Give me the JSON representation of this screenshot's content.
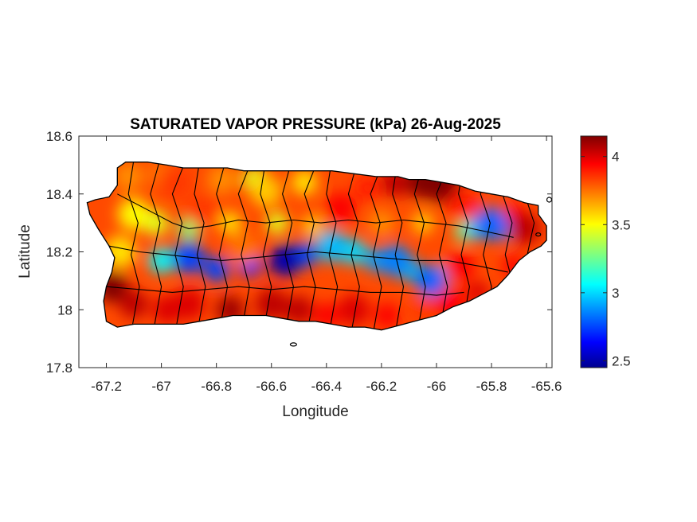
{
  "title": "SATURATED VAPOR PRESSURE (kPa) 26-Aug-2025",
  "axes": {
    "xlabel": "Longitude",
    "ylabel": "Latitude",
    "xlim": [
      -67.3,
      -65.58
    ],
    "ylim": [
      17.8,
      18.6
    ],
    "xticks": [
      -67.2,
      -67,
      -66.8,
      -66.6,
      -66.4,
      -66.2,
      -66,
      -65.8,
      -65.6
    ],
    "yticks": [
      17.8,
      18,
      18.2,
      18.4,
      18.6
    ],
    "xtick_labels": [
      "-67.2",
      "-67",
      "-66.8",
      "-66.6",
      "-66.4",
      "-66.2",
      "-66",
      "-65.8",
      "-65.6"
    ],
    "ytick_labels": [
      "17.8",
      "18",
      "18.2",
      "18.4",
      "18.6"
    ],
    "box": true,
    "grid": false
  },
  "colorbar": {
    "colormap": "jet",
    "range": [
      2.45,
      4.15
    ],
    "ticks": [
      2.5,
      3,
      3.5,
      4
    ],
    "tick_labels": [
      "2.5",
      "3",
      "3.5",
      "4"
    ],
    "placement": "right"
  },
  "colors": {
    "jet_stops": [
      "#00008f",
      "#0000ff",
      "#00ffff",
      "#ffff00",
      "#ff0000",
      "#800000"
    ],
    "boundary": "#000000"
  },
  "chart_data": {
    "type": "heatmap",
    "variable": "SATURATED VAPOR PRESSURE (kPa)",
    "date": "26-Aug-2025",
    "field_samples_kPa": [
      {
        "lon": -67.18,
        "lat": 18.08,
        "value": 4.15
      },
      {
        "lon": -67.1,
        "lat": 18.33,
        "value": 3.5
      },
      {
        "lon": -67.15,
        "lat": 18.2,
        "value": 3.55
      },
      {
        "lon": -66.95,
        "lat": 18.44,
        "value": 3.85
      },
      {
        "lon": -66.85,
        "lat": 18.34,
        "value": 3.85
      },
      {
        "lon": -66.62,
        "lat": 18.41,
        "value": 3.6
      },
      {
        "lon": -66.35,
        "lat": 18.35,
        "value": 3.95
      },
      {
        "lon": -66.05,
        "lat": 18.44,
        "value": 4.15
      },
      {
        "lon": -65.9,
        "lat": 18.36,
        "value": 3.9
      },
      {
        "lon": -65.8,
        "lat": 18.3,
        "value": 2.8
      },
      {
        "lon": -65.68,
        "lat": 18.28,
        "value": 4.05
      },
      {
        "lon": -66.9,
        "lat": 18.18,
        "value": 2.75
      },
      {
        "lon": -66.55,
        "lat": 18.17,
        "value": 2.5
      },
      {
        "lon": -66.7,
        "lat": 18.21,
        "value": 3.75
      },
      {
        "lon": -66.38,
        "lat": 18.22,
        "value": 2.95
      },
      {
        "lon": -66.15,
        "lat": 18.17,
        "value": 2.85
      },
      {
        "lon": -66.02,
        "lat": 18.1,
        "value": 2.8
      },
      {
        "lon": -65.92,
        "lat": 18.15,
        "value": 3.95
      },
      {
        "lon": -66.9,
        "lat": 18.02,
        "value": 4.0
      },
      {
        "lon": -66.6,
        "lat": 18.02,
        "value": 4.05
      },
      {
        "lon": -66.3,
        "lat": 18.0,
        "value": 4.0
      },
      {
        "lon": -65.95,
        "lat": 18.02,
        "value": 3.95
      }
    ]
  }
}
